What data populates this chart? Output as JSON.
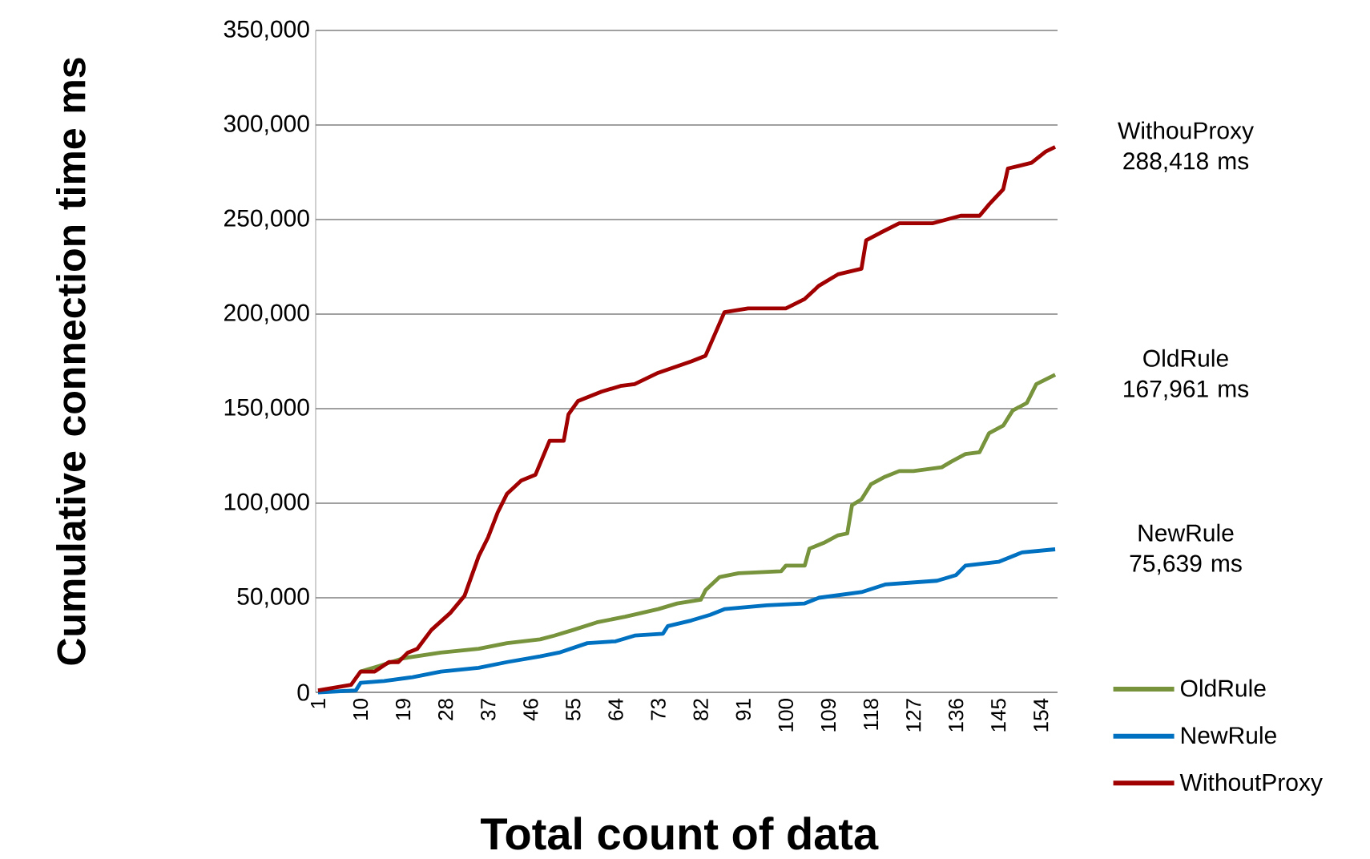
{
  "chart_data": {
    "type": "line",
    "xlabel": "Total count of data",
    "ylabel": "Cumulative connection time ms",
    "xlim": [
      0.5,
      157.5
    ],
    "xticks": [
      1,
      10,
      19,
      28,
      37,
      46,
      55,
      64,
      73,
      82,
      91,
      100,
      109,
      118,
      127,
      136,
      145,
      154
    ],
    "ylim": [
      0,
      350000
    ],
    "yticks": [
      0,
      {
        "value": 50000,
        "label": "50,000"
      },
      {
        "value": 100000,
        "label": "100,000"
      },
      {
        "value": 150000,
        "label": "150,000"
      },
      {
        "value": 200000,
        "label": "200,000"
      },
      {
        "value": 250000,
        "label": "250,000"
      },
      {
        "value": 300000,
        "label": "300,000"
      },
      {
        "value": 350000,
        "label": "350,000"
      }
    ],
    "grid": "y",
    "legend": "bottom right",
    "series": [
      {
        "name": "OldRule",
        "color": "#77933c",
        "x": [
          10,
          14,
          19,
          27,
          35,
          41,
          48,
          51,
          55,
          60,
          66,
          73,
          77,
          82,
          83,
          86,
          90,
          99,
          100,
          104,
          105,
          108,
          111,
          113,
          114,
          116,
          118,
          121,
          124,
          127,
          133,
          135,
          138,
          141,
          143,
          146,
          148,
          151,
          153,
          157
        ],
        "values": [
          11000,
          14000,
          18000,
          21000,
          23000,
          26000,
          28000,
          30000,
          33000,
          37000,
          40000,
          44000,
          47000,
          49000,
          54000,
          61000,
          63000,
          64000,
          67000,
          67000,
          76000,
          79000,
          83000,
          84000,
          99000,
          102000,
          110000,
          114000,
          117000,
          117000,
          119000,
          122000,
          126000,
          127000,
          137000,
          141000,
          149000,
          153000,
          163000,
          167961
        ]
      },
      {
        "name": "NewRule",
        "color": "#0070c0",
        "x": [
          1,
          9,
          10,
          15,
          21,
          27,
          35,
          41,
          48,
          52,
          58,
          64,
          68,
          74,
          75,
          80,
          84,
          87,
          96,
          104,
          107,
          116,
          121,
          132,
          136,
          138,
          145,
          150,
          157
        ],
        "values": [
          0,
          1000,
          5000,
          6000,
          8000,
          11000,
          13000,
          16000,
          19000,
          21000,
          26000,
          27000,
          30000,
          31000,
          35000,
          38000,
          41000,
          44000,
          46000,
          47000,
          50000,
          53000,
          57000,
          59000,
          62000,
          67000,
          69000,
          74000,
          75639
        ]
      },
      {
        "name": "WithoutProxy",
        "color": "#a00000",
        "x": [
          1,
          8,
          10,
          13,
          16,
          18,
          20,
          22,
          25,
          29,
          32,
          35,
          37,
          39,
          41,
          44,
          47,
          50,
          53,
          54,
          56,
          61,
          65,
          68,
          73,
          80,
          83,
          87,
          92,
          100,
          104,
          107,
          111,
          116,
          117,
          120,
          124,
          131,
          134,
          137,
          141,
          143,
          146,
          147,
          152,
          155,
          157
        ],
        "values": [
          1000,
          4000,
          11000,
          11000,
          16000,
          16000,
          21000,
          23000,
          33000,
          42000,
          51000,
          72000,
          82000,
          95000,
          105000,
          112000,
          115000,
          133000,
          133000,
          147000,
          154000,
          159000,
          162000,
          163000,
          169000,
          175000,
          178000,
          201000,
          203000,
          203000,
          208000,
          215000,
          221000,
          224000,
          239000,
          243000,
          248000,
          248000,
          250000,
          252000,
          252000,
          258000,
          266000,
          277000,
          280000,
          286000,
          288418
        ]
      }
    ],
    "annotations": [
      "WithouProxy 288,418 ms",
      "OldRule 167,961 ms",
      "NewRule 75,639 ms"
    ]
  }
}
